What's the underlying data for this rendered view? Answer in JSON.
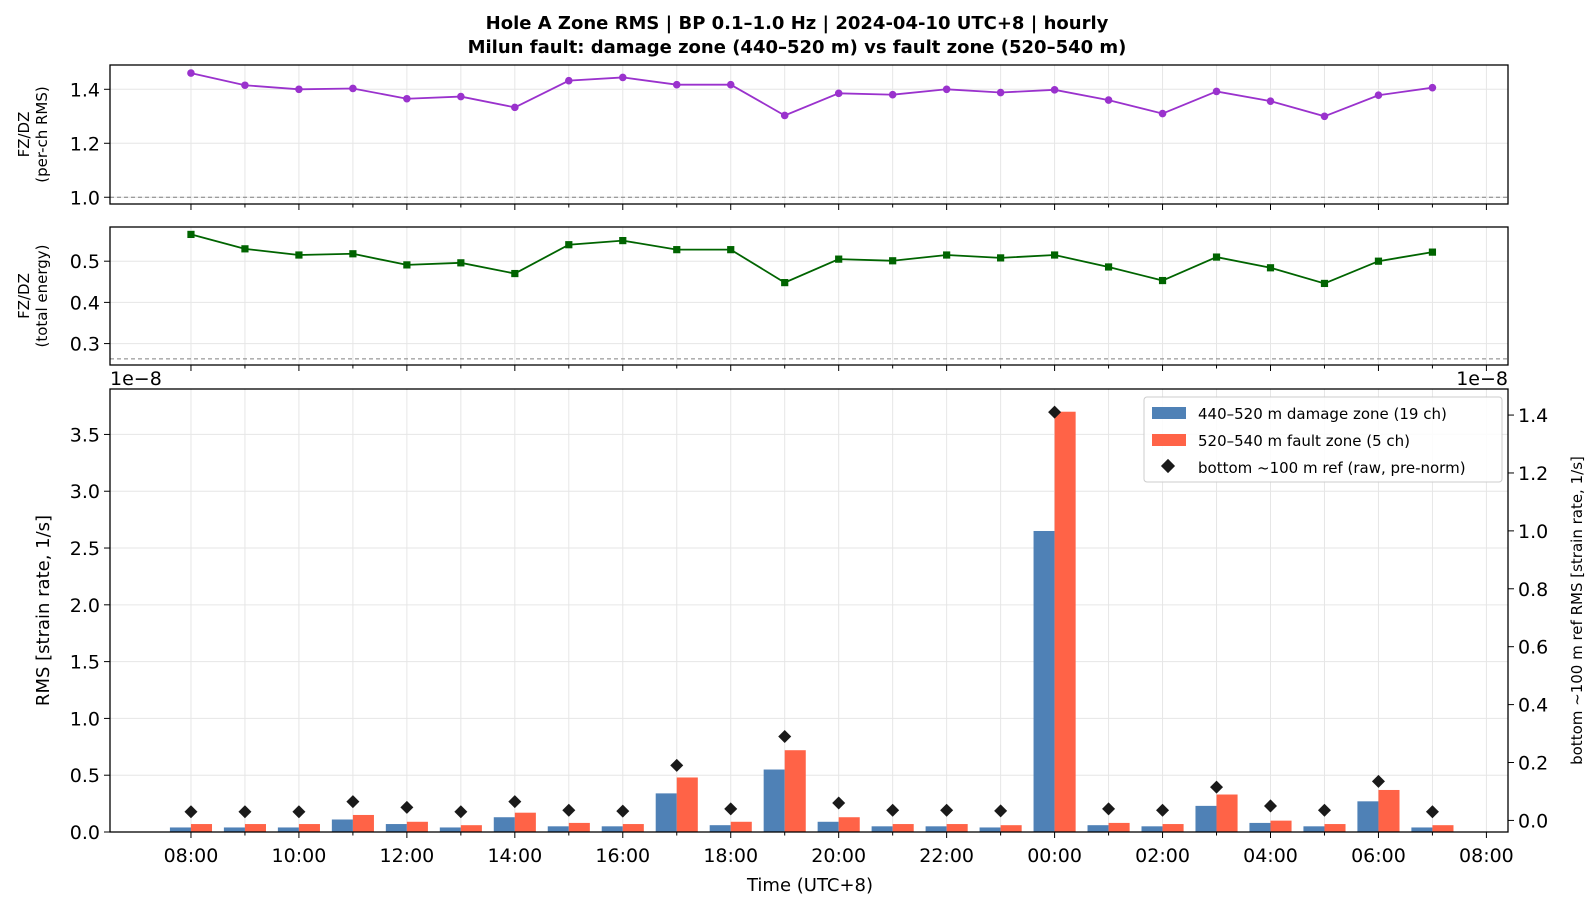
{
  "title_line1": "Hole A Zone RMS  |  BP 0.1–1.0 Hz  |  2024-04-10 UTC+8  |  hourly",
  "title_line2": "Milun fault: damage zone (440–520 m) vs fault zone (520–540 m)",
  "colors": {
    "ratio_rms": "#9a32cd",
    "ratio_energy": "#006400",
    "damage_zone": "#4f81b6",
    "fault_zone": "#ff6347",
    "reference": "#1a1a1a"
  },
  "chart_data": [
    {
      "id": "panel-rms-ratio",
      "type": "line",
      "ylabel_line1": "FZ/DZ",
      "ylabel_line2": "(per-ch RMS)",
      "ylim": [
        0.975,
        1.49
      ],
      "yticks": [
        1.0,
        1.2,
        1.4
      ],
      "ytick_labels": [
        "1.0",
        "1.2",
        "1.4"
      ],
      "reference_line": 1.0,
      "marker": "circle",
      "series": [
        {
          "values": [
            1.46,
            1.415,
            1.4,
            1.403,
            1.365,
            1.373,
            1.333,
            1.432,
            1.444,
            1.417,
            1.417,
            1.303,
            1.385,
            1.38,
            1.4,
            1.388,
            1.398,
            1.36,
            1.31,
            1.392,
            1.356,
            1.3,
            1.378,
            1.406
          ]
        }
      ]
    },
    {
      "id": "panel-energy-ratio",
      "type": "line",
      "ylabel_line1": "FZ/DZ",
      "ylabel_line2": "(total energy)",
      "ylim": [
        0.248,
        0.583
      ],
      "yticks": [
        0.3,
        0.4,
        0.5
      ],
      "ytick_labels": [
        "0.3",
        "0.4",
        "0.5"
      ],
      "reference_line": 0.263,
      "marker": "square",
      "series": [
        {
          "values": [
            0.565,
            0.53,
            0.515,
            0.518,
            0.491,
            0.496,
            0.47,
            0.54,
            0.55,
            0.528,
            0.528,
            0.448,
            0.505,
            0.501,
            0.515,
            0.508,
            0.515,
            0.486,
            0.453,
            0.51,
            0.484,
            0.446,
            0.5,
            0.522
          ]
        }
      ]
    },
    {
      "id": "panel-zone-rms",
      "type": "bar",
      "xlabel": "Time (UTC+8)",
      "ylabel": "RMS  [strain rate, 1/s]",
      "ylabel_right": "bottom ~100 m ref RMS  [strain rate, 1/s]",
      "offset_left": "1e−8",
      "offset_right": "1e−8",
      "ylim": [
        0,
        3.9
      ],
      "ylim_right": [
        -0.04,
        1.49
      ],
      "yticks": [
        0.0,
        0.5,
        1.0,
        1.5,
        2.0,
        2.5,
        3.0,
        3.5
      ],
      "ytick_labels": [
        "0.0",
        "0.5",
        "1.0",
        "1.5",
        "2.0",
        "2.5",
        "3.0",
        "3.5"
      ],
      "yticks_right": [
        0.0,
        0.2,
        0.4,
        0.6,
        0.8,
        1.0,
        1.2,
        1.4
      ],
      "ytick_labels_right": [
        "0.0",
        "0.2",
        "0.4",
        "0.6",
        "0.8",
        "1.0",
        "1.2",
        "1.4"
      ],
      "categories": [
        "08:00",
        "09:00",
        "10:00",
        "11:00",
        "12:00",
        "13:00",
        "14:00",
        "15:00",
        "16:00",
        "17:00",
        "18:00",
        "19:00",
        "20:00",
        "21:00",
        "22:00",
        "23:00",
        "00:00",
        "01:00",
        "02:00",
        "03:00",
        "04:00",
        "05:00",
        "06:00",
        "07:00"
      ],
      "xtick_labels": [
        "08:00",
        "10:00",
        "12:00",
        "14:00",
        "16:00",
        "18:00",
        "20:00",
        "22:00",
        "00:00",
        "02:00",
        "04:00",
        "06:00",
        "08:00"
      ],
      "legend_position": "upper right",
      "series": [
        {
          "name": "440–520 m  damage zone (19 ch)",
          "axis": "left",
          "values": [
            0.04,
            0.04,
            0.04,
            0.11,
            0.07,
            0.04,
            0.13,
            0.05,
            0.05,
            0.34,
            0.06,
            0.55,
            0.09,
            0.05,
            0.05,
            0.04,
            2.65,
            0.06,
            0.05,
            0.23,
            0.08,
            0.05,
            0.27,
            0.04
          ]
        },
        {
          "name": "520–540 m  fault zone (5 ch)",
          "axis": "left",
          "values": [
            0.07,
            0.07,
            0.07,
            0.15,
            0.09,
            0.06,
            0.17,
            0.08,
            0.07,
            0.48,
            0.09,
            0.72,
            0.13,
            0.07,
            0.07,
            0.06,
            3.7,
            0.08,
            0.07,
            0.33,
            0.1,
            0.07,
            0.37,
            0.06
          ]
        },
        {
          "name": "bottom ~100 m ref (raw, pre-norm)",
          "axis": "right",
          "values": [
            0.03,
            0.03,
            0.03,
            0.065,
            0.045,
            0.03,
            0.065,
            0.035,
            0.032,
            0.19,
            0.04,
            0.29,
            0.06,
            0.035,
            0.035,
            0.033,
            1.41,
            0.04,
            0.035,
            0.115,
            0.05,
            0.035,
            0.135,
            0.03
          ]
        }
      ]
    }
  ]
}
